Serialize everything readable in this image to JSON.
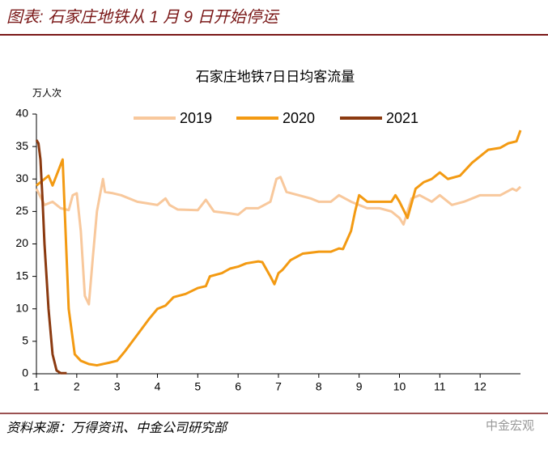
{
  "header": "图表: 石家庄地铁从 1 月 9 日开始停运",
  "source": "资料来源：万得资讯、中金公司研究部",
  "watermark": "中金宏观",
  "chart_data": {
    "type": "line",
    "title": "石家庄地铁7日日均客流量",
    "y_label": "万人次",
    "xlim": [
      1,
      13
    ],
    "xticks": [
      1,
      2,
      3,
      4,
      5,
      6,
      7,
      8,
      9,
      10,
      11,
      12
    ],
    "ylim": [
      0,
      40
    ],
    "yticks": [
      0,
      5,
      10,
      15,
      20,
      25,
      30,
      35,
      40
    ],
    "grid": false,
    "legend": "top",
    "series": [
      {
        "name": "2019",
        "color": "#f8c89c",
        "x": [
          1,
          1.2,
          1.4,
          1.6,
          1.8,
          1.9,
          2.0,
          2.1,
          2.2,
          2.3,
          2.4,
          2.5,
          2.65,
          2.7,
          2.9,
          3.1,
          3.5,
          4.0,
          4.2,
          4.3,
          4.5,
          5.0,
          5.2,
          5.4,
          5.8,
          6.0,
          6.2,
          6.5,
          6.8,
          6.95,
          7.05,
          7.2,
          7.5,
          7.8,
          8.0,
          8.3,
          8.5,
          8.8,
          9.0,
          9.2,
          9.5,
          9.8,
          10.0,
          10.1,
          10.3,
          10.5,
          10.8,
          11.0,
          11.3,
          11.6,
          12.0,
          12.5,
          12.8,
          12.9,
          13.0
        ],
        "values": [
          28.5,
          26,
          26.5,
          25.5,
          25.2,
          27.5,
          27.8,
          22,
          12,
          10.7,
          18,
          25,
          30,
          28,
          27.8,
          27.5,
          26.5,
          26,
          27,
          26,
          25.3,
          25.2,
          26.8,
          25,
          24.7,
          24.5,
          25.5,
          25.5,
          26.5,
          30,
          30.3,
          28,
          27.5,
          27,
          26.5,
          26.5,
          27.5,
          26.5,
          26,
          25.5,
          25.5,
          25,
          24,
          23,
          27,
          27.5,
          26.5,
          27.5,
          26,
          26.5,
          27.5,
          27.5,
          28.5,
          28.2,
          28.8
        ]
      },
      {
        "name": "2020",
        "color": "#f39a12",
        "x": [
          1,
          1.3,
          1.4,
          1.65,
          1.8,
          1.95,
          2.1,
          2.3,
          2.5,
          2.8,
          3.0,
          3.2,
          3.5,
          3.8,
          4.0,
          4.2,
          4.4,
          4.7,
          5.0,
          5.2,
          5.3,
          5.6,
          5.8,
          6.0,
          6.2,
          6.5,
          6.6,
          6.8,
          6.9,
          7.0,
          7.1,
          7.3,
          7.6,
          8.0,
          8.3,
          8.5,
          8.6,
          8.8,
          8.9,
          9.0,
          9.2,
          9.5,
          9.8,
          9.9,
          10.0,
          10.2,
          10.4,
          10.6,
          10.8,
          11.0,
          11.2,
          11.5,
          11.8,
          12.0,
          12.2,
          12.5,
          12.7,
          12.9,
          13.0
        ],
        "values": [
          29,
          30.5,
          29,
          33,
          10,
          3,
          2,
          1.5,
          1.3,
          1.7,
          2,
          3.5,
          6,
          8.5,
          10,
          10.5,
          11.8,
          12.3,
          13.2,
          13.5,
          15,
          15.5,
          16.2,
          16.5,
          17,
          17.3,
          17.2,
          15,
          13.8,
          15.5,
          16,
          17.5,
          18.5,
          18.8,
          18.8,
          19.3,
          19.2,
          22,
          25,
          27.5,
          26.5,
          26.5,
          26.5,
          27.5,
          26.5,
          24,
          28.5,
          29.5,
          30,
          31,
          30,
          30.5,
          32.5,
          33.5,
          34.5,
          34.8,
          35.5,
          35.8,
          37.5
        ]
      },
      {
        "name": "2021",
        "color": "#8b3a10",
        "x": [
          1,
          1.05,
          1.1,
          1.15,
          1.2,
          1.3,
          1.4,
          1.5,
          1.6,
          1.75
        ],
        "values": [
          36,
          35.5,
          33,
          27,
          20,
          10,
          3,
          0.5,
          0.1,
          0.1
        ]
      }
    ]
  }
}
